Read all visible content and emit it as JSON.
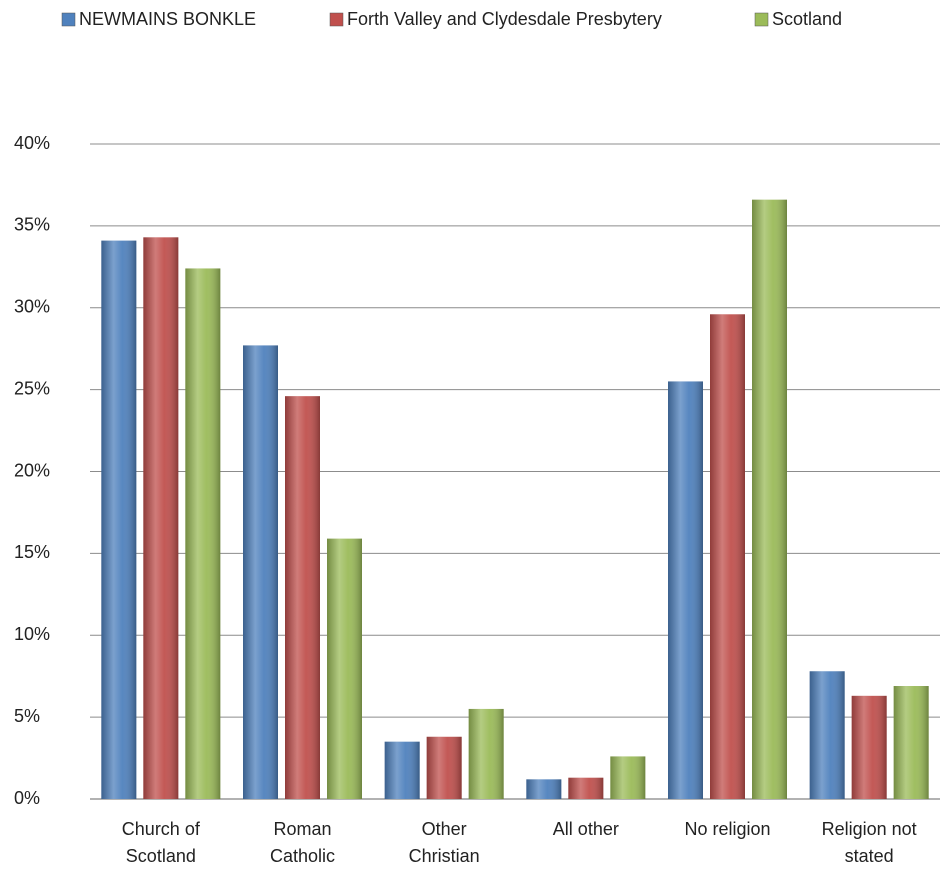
{
  "chart_data": {
    "type": "bar",
    "categories": [
      "Church of Scotland",
      "Roman Catholic",
      "Other Christian",
      "All other",
      "No religion",
      "Religion not stated"
    ],
    "series": [
      {
        "name": "NEWMAINS BONKLE",
        "color": "#4f81bd",
        "values": [
          34.1,
          27.7,
          3.5,
          1.2,
          25.5,
          7.8
        ]
      },
      {
        "name": "Forth Valley and Clydesdale Presbytery",
        "color": "#c0504d",
        "values": [
          34.3,
          24.6,
          3.8,
          1.3,
          29.6,
          6.3
        ]
      },
      {
        "name": "Scotland",
        "color": "#9bbb59",
        "values": [
          32.4,
          15.9,
          5.5,
          2.6,
          36.6,
          6.9
        ]
      }
    ],
    "ylim": [
      0,
      40
    ],
    "yticks": [
      {
        "value": 0,
        "label": "0%"
      },
      {
        "value": 5,
        "label": "5%"
      },
      {
        "value": 10,
        "label": "10%"
      },
      {
        "value": 15,
        "label": "15%"
      },
      {
        "value": 20,
        "label": "20%"
      },
      {
        "value": 25,
        "label": "25%"
      },
      {
        "value": 30,
        "label": "30%"
      },
      {
        "value": 35,
        "label": "35%"
      },
      {
        "value": 40,
        "label": "40%"
      }
    ],
    "grid": true,
    "legend": "top"
  }
}
